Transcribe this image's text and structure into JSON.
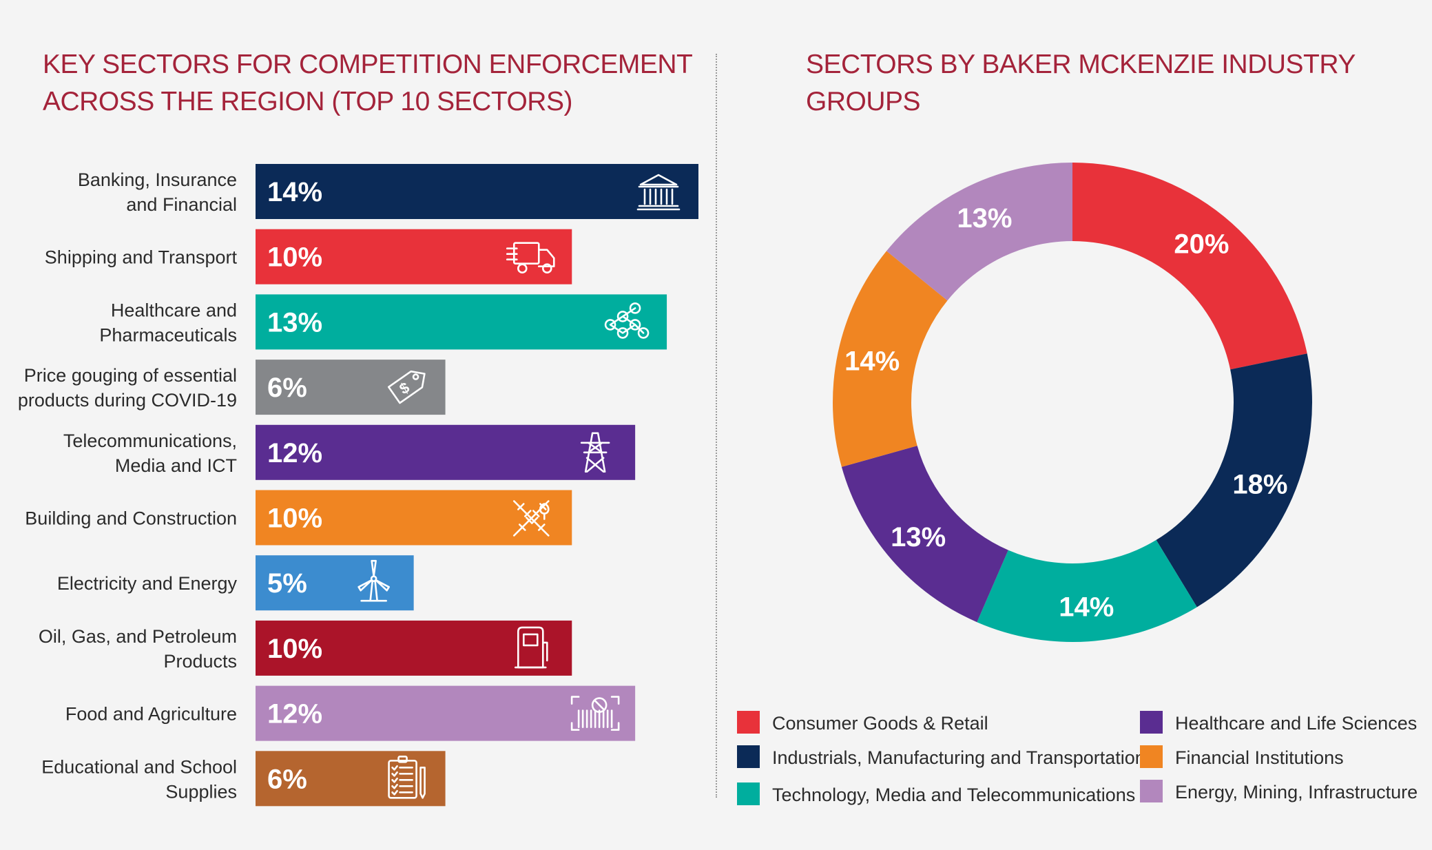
{
  "left_title": "KEY SECTORS FOR COMPETITION ENFORCEMENT ACROSS THE REGION (TOP 10 SECTORS)",
  "right_title": "SECTORS BY BAKER MCKENZIE INDUSTRY GROUPS",
  "chart_data": [
    {
      "type": "bar",
      "orientation": "horizontal",
      "title": "KEY SECTORS FOR COMPETITION ENFORCEMENT ACROSS THE REGION (TOP 10 SECTORS)",
      "categories": [
        [
          "Banking, Insurance",
          "and Financial"
        ],
        [
          "Shipping and Transport"
        ],
        [
          "Healthcare and",
          "Pharmaceuticals"
        ],
        [
          "Price gouging of essential",
          "products during COVID-19"
        ],
        [
          "Telecommunications,",
          "Media and ICT"
        ],
        [
          "Building and Construction"
        ],
        [
          "Electricity and Energy"
        ],
        [
          "Oil, Gas, and Petroleum",
          "Products"
        ],
        [
          "Food and Agriculture"
        ],
        [
          "Educational and School",
          "Supplies"
        ]
      ],
      "values": [
        14,
        10,
        13,
        6,
        12,
        10,
        5,
        10,
        12,
        6
      ],
      "value_labels": [
        "14%",
        "10%",
        "13%",
        "6%",
        "12%",
        "10%",
        "5%",
        "10%",
        "12%",
        "6%"
      ],
      "colors": [
        "#0b2a57",
        "#e8323a",
        "#00ae9e",
        "#85878a",
        "#5a2d91",
        "#f08522",
        "#3c8ccf",
        "#ab1429",
        "#b287bd",
        "#b5652f"
      ],
      "icons": [
        "bank-icon",
        "delivery-truck-icon",
        "molecule-icon",
        "price-tag-icon",
        "transmission-tower-icon",
        "construction-map-icon",
        "wind-turbine-icon",
        "fuel-pump-icon",
        "food-scan-icon",
        "clipboard-checklist-icon"
      ],
      "xlim": [
        0,
        14
      ],
      "grid": false
    },
    {
      "type": "pie",
      "donut": true,
      "title": "SECTORS BY BAKER MCKENZIE INDUSTRY GROUPS",
      "slices": [
        {
          "name": "Consumer Goods & Retail",
          "value": 20,
          "label": "20%",
          "color": "#e8323a"
        },
        {
          "name": "Industrials, Manufacturing and Transportation",
          "value": 18,
          "label": "18%",
          "color": "#0b2a57"
        },
        {
          "name": "Technology, Media and Telecommunications",
          "value": 14,
          "label": "14%",
          "color": "#00ae9e"
        },
        {
          "name": "Healthcare and Life Sciences",
          "value": 13,
          "label": "13%",
          "color": "#5a2d91"
        },
        {
          "name": "Financial Institutions",
          "value": 14,
          "label": "14%",
          "color": "#f08522"
        },
        {
          "name": "Energy, Mining, Infrastructure",
          "value": 13,
          "label": "13%",
          "color": "#b287bd"
        }
      ],
      "legend_position": "bottom"
    }
  ]
}
